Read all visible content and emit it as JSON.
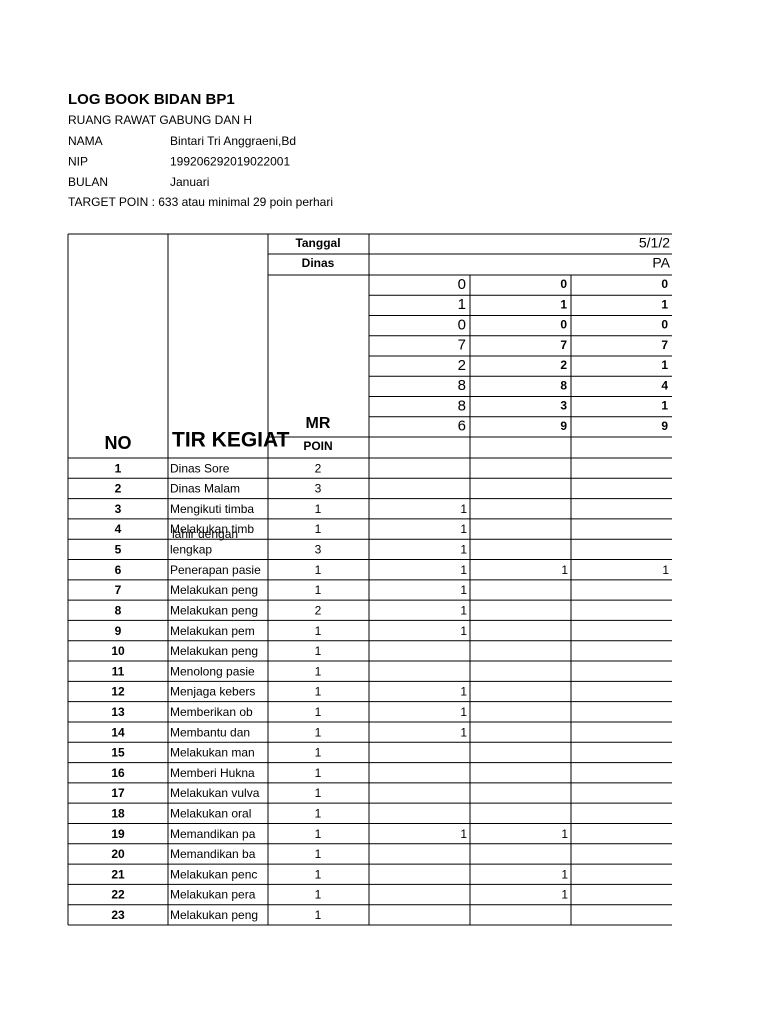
{
  "header": {
    "title": "LOG BOOK  BIDAN   BP1",
    "ruang": "RUANG  RAWAT GABUNG DAN H",
    "fields": [
      {
        "label": "NAMA",
        "value": "Bintari Tri Anggraeni,Bd"
      },
      {
        "label": "NIP",
        "value": "199206292019022001"
      },
      {
        "label": "BULAN",
        "value": "Januari"
      }
    ],
    "target": "TARGET POIN : 633 atau minimal 29 poin perhari"
  },
  "table": {
    "no_header": "NO",
    "kegiatan_header": "TIR KEGIAT",
    "tanggal_label": "Tanggal",
    "tanggal_value": "5/1/2",
    "dinas_label": "Dinas",
    "dinas_value": "PA",
    "mr": "MR",
    "poin_header": "POIN",
    "codes": [
      [
        "0",
        "0",
        "0"
      ],
      [
        "1",
        "1",
        "1"
      ],
      [
        "0",
        "0",
        "0"
      ],
      [
        "7",
        "7",
        "7"
      ],
      [
        "2",
        "2",
        "1"
      ],
      [
        "8",
        "8",
        "4"
      ],
      [
        "8",
        "3",
        "1"
      ],
      [
        "6",
        "9",
        "9"
      ]
    ],
    "rows": [
      [
        "1",
        "Dinas Sore",
        "2",
        null,
        null,
        null
      ],
      [
        "2",
        "Dinas Malam",
        "3",
        null,
        null,
        null
      ],
      [
        "3",
        "Mengikuti timba",
        "1",
        "1",
        null,
        null
      ],
      [
        "4",
        "Melakukan timb",
        "1",
        "1",
        null,
        null
      ],
      [
        "5",
        "lengkap",
        "3",
        "1",
        null,
        null
      ],
      [
        "6",
        "Penerapan pasie",
        "1",
        "1",
        "1",
        "1"
      ],
      [
        "7",
        "Melakukan peng",
        "1",
        "1",
        null,
        null
      ],
      [
        "8",
        "Melakukan peng",
        "2",
        "1",
        null,
        null
      ],
      [
        "9",
        "Melakukan pem",
        "1",
        "1",
        null,
        null
      ],
      [
        "10",
        "Melakukan peng",
        "1",
        null,
        null,
        null
      ],
      [
        "11",
        "Menolong pasie",
        "1",
        null,
        null,
        null
      ],
      [
        "12",
        "Menjaga kebers",
        "1",
        "1",
        null,
        null
      ],
      [
        "13",
        "Memberikan ob",
        "1",
        "1",
        null,
        null
      ],
      [
        "14",
        "Membantu dan",
        "1",
        "1",
        null,
        null
      ],
      [
        "15",
        "Melakukan man",
        "1",
        null,
        null,
        null
      ],
      [
        "16",
        "Memberi Hukna",
        "1",
        null,
        null,
        null
      ],
      [
        "17",
        "Melakukan vulva",
        "1",
        null,
        null,
        null
      ],
      [
        "18",
        "Melakukan oral",
        "1",
        null,
        null,
        null
      ],
      [
        "19",
        "Memandikan pa",
        "1",
        "1",
        "1",
        null
      ],
      [
        "20",
        "Memandikan ba",
        "1",
        null,
        null,
        null
      ],
      [
        "21",
        "Melakukan penc",
        "1",
        null,
        "1",
        null
      ],
      [
        "22",
        "Melakukan pera",
        "1",
        null,
        "1",
        null
      ],
      [
        "23",
        "Melakukan peng",
        "1",
        null,
        null,
        null
      ]
    ],
    "row4_overlap": "lahir dengan"
  }
}
